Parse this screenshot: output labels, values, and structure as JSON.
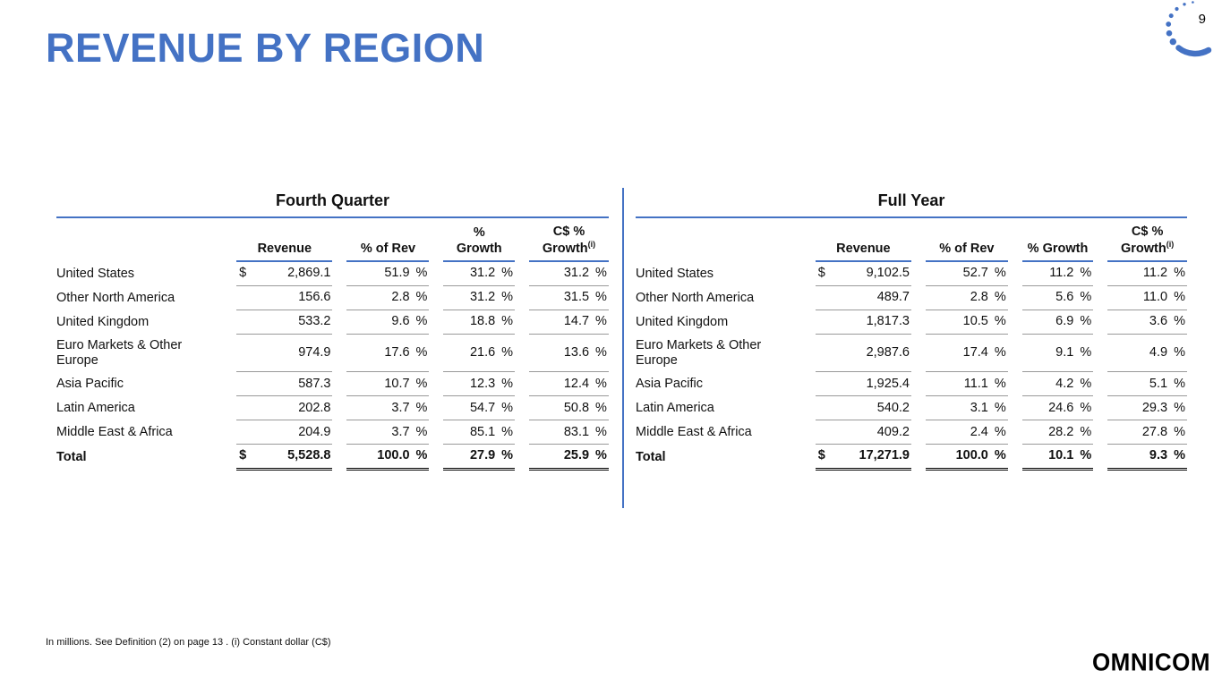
{
  "page": {
    "title": "REVENUE BY REGION",
    "page_number": "9",
    "footnote": "In millions. See Definition (2) on page 13 . (i) Constant dollar (C$)",
    "logo": "OMNICOM",
    "accent_color": "#4472C4"
  },
  "tables": {
    "q4": {
      "title": "Fourth Quarter",
      "headers": [
        {
          "label": "Revenue"
        },
        {
          "label": "% of Rev"
        },
        {
          "label": "%",
          "label2": "Growth"
        },
        {
          "label": "C$ %",
          "label2": "Growth",
          "sup": "(i)"
        }
      ],
      "rows": [
        {
          "label": "United States",
          "dollar": "$",
          "revenue": "2,869.1",
          "pct_of_rev": "51.9",
          "growth": "31.2",
          "cs_growth": "31.2"
        },
        {
          "label": "Other North America",
          "dollar": "",
          "revenue": "156.6",
          "pct_of_rev": "2.8",
          "growth": "31.2",
          "cs_growth": "31.5"
        },
        {
          "label": "United Kingdom",
          "dollar": "",
          "revenue": "533.2",
          "pct_of_rev": "9.6",
          "growth": "18.8",
          "cs_growth": "14.7"
        },
        {
          "label": "Euro Markets & Other Europe",
          "dollar": "",
          "revenue": "974.9",
          "pct_of_rev": "17.6",
          "growth": "21.6",
          "cs_growth": "13.6"
        },
        {
          "label": "Asia Pacific",
          "dollar": "",
          "revenue": "587.3",
          "pct_of_rev": "10.7",
          "growth": "12.3",
          "cs_growth": "12.4"
        },
        {
          "label": "Latin America",
          "dollar": "",
          "revenue": "202.8",
          "pct_of_rev": "3.7",
          "growth": "54.7",
          "cs_growth": "50.8"
        },
        {
          "label": "Middle East & Africa",
          "dollar": "",
          "revenue": "204.9",
          "pct_of_rev": "3.7",
          "growth": "85.1",
          "cs_growth": "83.1"
        }
      ],
      "total": {
        "label": "Total",
        "dollar": "$",
        "revenue": "5,528.8",
        "pct_of_rev": "100.0",
        "growth": "27.9",
        "cs_growth": "25.9"
      }
    },
    "fy": {
      "title": "Full Year",
      "headers": [
        {
          "label": "Revenue"
        },
        {
          "label": "% of Rev"
        },
        {
          "label": "% Growth"
        },
        {
          "label": "C$ %",
          "label2": "Growth",
          "sup": "(i)"
        }
      ],
      "rows": [
        {
          "label": "United States",
          "dollar": "$",
          "revenue": "9,102.5",
          "pct_of_rev": "52.7",
          "growth": "11.2",
          "cs_growth": "11.2"
        },
        {
          "label": "Other North America",
          "dollar": "",
          "revenue": "489.7",
          "pct_of_rev": "2.8",
          "growth": "5.6",
          "cs_growth": "11.0"
        },
        {
          "label": "United Kingdom",
          "dollar": "",
          "revenue": "1,817.3",
          "pct_of_rev": "10.5",
          "growth": "6.9",
          "cs_growth": "3.6"
        },
        {
          "label": "Euro Markets & Other Europe",
          "dollar": "",
          "revenue": "2,987.6",
          "pct_of_rev": "17.4",
          "growth": "9.1",
          "cs_growth": "4.9"
        },
        {
          "label": "Asia Pacific",
          "dollar": "",
          "revenue": "1,925.4",
          "pct_of_rev": "11.1",
          "growth": "4.2",
          "cs_growth": "5.1"
        },
        {
          "label": "Latin America",
          "dollar": "",
          "revenue": "540.2",
          "pct_of_rev": "3.1",
          "growth": "24.6",
          "cs_growth": "29.3"
        },
        {
          "label": "Middle East & Africa",
          "dollar": "",
          "revenue": "409.2",
          "pct_of_rev": "2.4",
          "growth": "28.2",
          "cs_growth": "27.8"
        }
      ],
      "total": {
        "label": "Total",
        "dollar": "$",
        "revenue": "17,271.9",
        "pct_of_rev": "100.0",
        "growth": "10.1",
        "cs_growth": "9.3"
      }
    }
  }
}
